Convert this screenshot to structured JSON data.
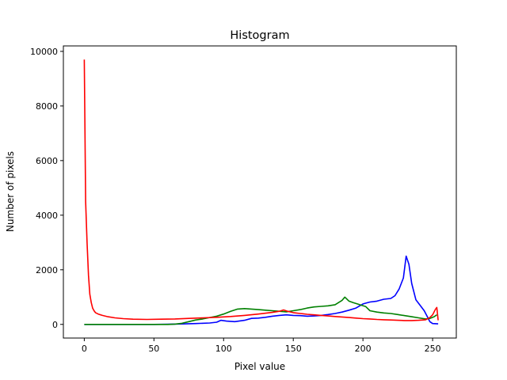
{
  "chart_data": {
    "type": "line",
    "title": "Histogram",
    "xlabel": "Pixel value",
    "ylabel": "Number of pixels",
    "xlim": [
      -15,
      267
    ],
    "ylim": [
      -500,
      10200
    ],
    "x_ticks": [
      0,
      50,
      100,
      150,
      200,
      250
    ],
    "y_ticks": [
      0,
      2000,
      4000,
      6000,
      8000,
      10000
    ],
    "grid": false,
    "legend": "none",
    "series": [
      {
        "color": "#0000ff",
        "points": [
          [
            0,
            0
          ],
          [
            50,
            0
          ],
          [
            60,
            5
          ],
          [
            70,
            15
          ],
          [
            80,
            30
          ],
          [
            90,
            50
          ],
          [
            95,
            80
          ],
          [
            98,
            150
          ],
          [
            102,
            120
          ],
          [
            108,
            100
          ],
          [
            115,
            150
          ],
          [
            120,
            220
          ],
          [
            125,
            230
          ],
          [
            130,
            260
          ],
          [
            135,
            300
          ],
          [
            140,
            330
          ],
          [
            145,
            350
          ],
          [
            150,
            330
          ],
          [
            155,
            320
          ],
          [
            160,
            300
          ],
          [
            165,
            310
          ],
          [
            170,
            330
          ],
          [
            175,
            360
          ],
          [
            180,
            400
          ],
          [
            185,
            450
          ],
          [
            190,
            520
          ],
          [
            195,
            600
          ],
          [
            200,
            750
          ],
          [
            205,
            820
          ],
          [
            210,
            850
          ],
          [
            215,
            920
          ],
          [
            220,
            950
          ],
          [
            223,
            1050
          ],
          [
            226,
            1300
          ],
          [
            229,
            1700
          ],
          [
            231,
            2500
          ],
          [
            233,
            2200
          ],
          [
            235,
            1500
          ],
          [
            238,
            900
          ],
          [
            241,
            700
          ],
          [
            244,
            500
          ],
          [
            246,
            300
          ],
          [
            248,
            100
          ],
          [
            250,
            30
          ],
          [
            254,
            20
          ]
        ]
      },
      {
        "color": "#008000",
        "points": [
          [
            0,
            0
          ],
          [
            60,
            0
          ],
          [
            65,
            10
          ],
          [
            70,
            40
          ],
          [
            75,
            100
          ],
          [
            80,
            160
          ],
          [
            85,
            200
          ],
          [
            90,
            250
          ],
          [
            95,
            300
          ],
          [
            100,
            380
          ],
          [
            105,
            480
          ],
          [
            110,
            560
          ],
          [
            115,
            580
          ],
          [
            120,
            560
          ],
          [
            125,
            540
          ],
          [
            130,
            520
          ],
          [
            135,
            500
          ],
          [
            140,
            480
          ],
          [
            145,
            460
          ],
          [
            150,
            500
          ],
          [
            155,
            540
          ],
          [
            160,
            600
          ],
          [
            165,
            640
          ],
          [
            170,
            660
          ],
          [
            175,
            680
          ],
          [
            180,
            720
          ],
          [
            185,
            880
          ],
          [
            187,
            1000
          ],
          [
            190,
            850
          ],
          [
            193,
            800
          ],
          [
            196,
            750
          ],
          [
            199,
            700
          ],
          [
            202,
            650
          ],
          [
            205,
            500
          ],
          [
            210,
            450
          ],
          [
            215,
            420
          ],
          [
            220,
            400
          ],
          [
            225,
            360
          ],
          [
            230,
            320
          ],
          [
            235,
            280
          ],
          [
            240,
            240
          ],
          [
            245,
            200
          ],
          [
            248,
            220
          ],
          [
            251,
            280
          ],
          [
            253,
            350
          ]
        ]
      },
      {
        "color": "#ff0000",
        "points": [
          [
            0,
            9700
          ],
          [
            1,
            4500
          ],
          [
            2,
            3000
          ],
          [
            3,
            1800
          ],
          [
            4,
            1100
          ],
          [
            5,
            800
          ],
          [
            6,
            600
          ],
          [
            7,
            500
          ],
          [
            8,
            430
          ],
          [
            10,
            380
          ],
          [
            13,
            330
          ],
          [
            17,
            280
          ],
          [
            22,
            240
          ],
          [
            28,
            210
          ],
          [
            35,
            190
          ],
          [
            45,
            180
          ],
          [
            55,
            190
          ],
          [
            65,
            200
          ],
          [
            75,
            220
          ],
          [
            85,
            240
          ],
          [
            95,
            260
          ],
          [
            105,
            290
          ],
          [
            115,
            330
          ],
          [
            125,
            380
          ],
          [
            135,
            440
          ],
          [
            140,
            480
          ],
          [
            143,
            530
          ],
          [
            146,
            480
          ],
          [
            150,
            430
          ],
          [
            155,
            400
          ],
          [
            160,
            370
          ],
          [
            165,
            350
          ],
          [
            170,
            330
          ],
          [
            175,
            310
          ],
          [
            180,
            290
          ],
          [
            185,
            270
          ],
          [
            190,
            250
          ],
          [
            195,
            230
          ],
          [
            200,
            210
          ],
          [
            205,
            200
          ],
          [
            210,
            180
          ],
          [
            215,
            170
          ],
          [
            220,
            160
          ],
          [
            225,
            150
          ],
          [
            230,
            140
          ],
          [
            235,
            140
          ],
          [
            240,
            150
          ],
          [
            245,
            170
          ],
          [
            248,
            250
          ],
          [
            250,
            350
          ],
          [
            252,
            550
          ],
          [
            253,
            620
          ],
          [
            254,
            150
          ]
        ]
      }
    ]
  }
}
